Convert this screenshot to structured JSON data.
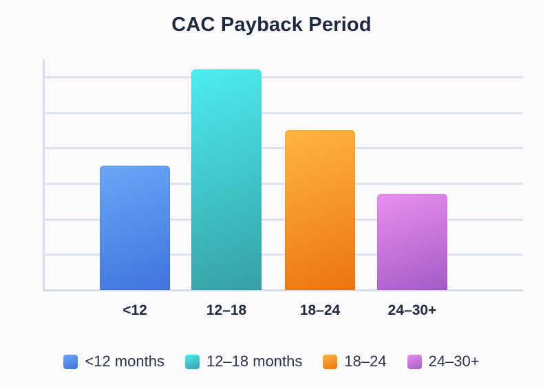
{
  "chart_data": {
    "type": "bar",
    "title": "CAC Payback Period",
    "xlabel": "",
    "ylabel": "",
    "categories": [
      "<12",
      "12–18",
      "18–24",
      "24–30+"
    ],
    "values": [
      3.5,
      6.2,
      4.5,
      2.7
    ],
    "ylim": [
      0,
      6.5
    ],
    "y_ticks_labeled": false,
    "grid": true,
    "gridline_count": 6,
    "legend_position": "bottom",
    "legend": [
      "<12 months",
      "12–18 months",
      "18–24",
      "24–30+"
    ],
    "colors": [
      {
        "top": "#6aa6f8",
        "bottom": "#3f74dd"
      },
      {
        "top": "#4dedf0",
        "bottom": "#35a0a6"
      },
      {
        "top": "#ffb640",
        "bottom": "#ec7411"
      },
      {
        "top": "#ea8ff0",
        "bottom": "#a35bc6"
      }
    ]
  },
  "legend_colors": [
    "#4a8df0",
    "#3cc6d4",
    "#f5871c",
    "#c064d2"
  ]
}
